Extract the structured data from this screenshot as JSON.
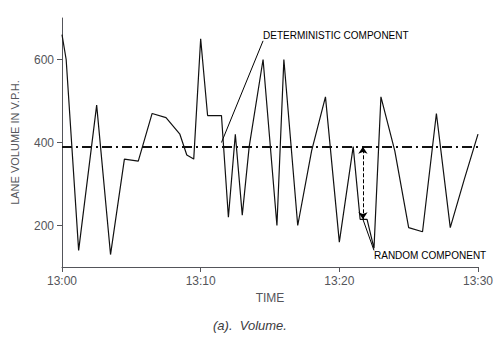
{
  "chart_data": {
    "type": "line",
    "title": "(a).  Volume.",
    "x_label": "TIME",
    "y_label": "LANE VOLUME IN V.P.H.",
    "x": [
      0,
      0.3,
      1.2,
      2.5,
      3.5,
      4.5,
      5.5,
      6.5,
      7.5,
      8.5,
      9.0,
      9.5,
      10.0,
      10.5,
      11.5,
      12.0,
      12.5,
      13.0,
      13.5,
      14.5,
      15.5,
      16.0,
      17.0,
      18.0,
      19.0,
      20.0,
      21.0,
      21.5,
      22.0,
      22.5,
      23.0,
      24.0,
      25.0,
      26.0,
      27.0,
      28.0,
      29.0,
      30.0
    ],
    "values": [
      660,
      600,
      140,
      490,
      130,
      360,
      355,
      470,
      460,
      420,
      370,
      360,
      650,
      465,
      465,
      220,
      420,
      225,
      390,
      600,
      200,
      600,
      200,
      380,
      510,
      160,
      390,
      215,
      215,
      145,
      510,
      380,
      195,
      185,
      470,
      195,
      310,
      420
    ],
    "color": "#111111",
    "xlim": [
      0,
      30
    ],
    "xticks": [
      {
        "value": 0,
        "label": "13:00"
      },
      {
        "value": 10,
        "label": "13:10"
      },
      {
        "value": 20,
        "label": "13:20"
      },
      {
        "value": 30,
        "label": "13:30"
      }
    ],
    "ylim": [
      100,
      700
    ],
    "yticks": [
      200,
      400,
      600
    ],
    "grid": false,
    "deterministic_value": 390,
    "annotations": [
      {
        "text": "DETERMINISTIC COMPONENT",
        "x": 11.5,
        "y": 400,
        "text_x": 14.5,
        "text_y": 645
      },
      {
        "text": "RANDOM COMPONENT",
        "x": 21.7,
        "y": 215,
        "y_top": 390,
        "text_x": 22.5,
        "text_y": 140
      }
    ]
  }
}
